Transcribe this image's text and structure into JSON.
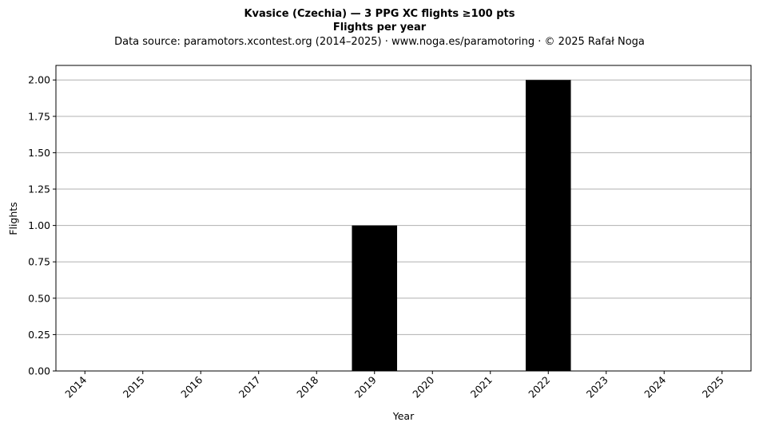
{
  "chart_data": {
    "type": "bar",
    "title": "Kvasice (Czechia)  —  3 PPG XC flights ≥100 pts",
    "title_line2": "Flights per year",
    "subtitle": "Data source: paramotors.xcontest.org (2014–2025)  ·  www.noga.es/paramotoring  ·  © 2025 Rafał Noga",
    "xlabel": "Year",
    "ylabel": "Flights",
    "categories": [
      "2014",
      "2015",
      "2016",
      "2017",
      "2018",
      "2019",
      "2020",
      "2021",
      "2022",
      "2023",
      "2024",
      "2025"
    ],
    "values": [
      0,
      0,
      0,
      0,
      0,
      1,
      0,
      0,
      2,
      0,
      0,
      0
    ],
    "ylim": [
      0,
      2.1
    ],
    "yticks": [
      "0.00",
      "0.25",
      "0.50",
      "0.75",
      "1.00",
      "1.25",
      "1.50",
      "1.75",
      "2.00"
    ],
    "grid": "horizontal",
    "bar_color": "#000000",
    "grid_color": "#b0b0b0"
  }
}
